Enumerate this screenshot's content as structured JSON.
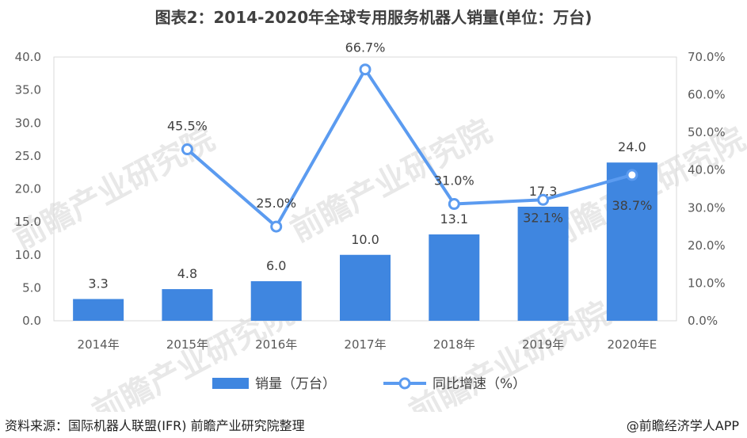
{
  "chart_data": {
    "type": "bar",
    "title": "图表2：2014-2020年全球专用服务机器人销量(单位：万台)",
    "categories": [
      "2014年",
      "2015年",
      "2016年",
      "2017年",
      "2018年",
      "2019年",
      "2020年E"
    ],
    "series": [
      {
        "name": "销量（万台）",
        "type": "bar",
        "axis": "left",
        "color": "#3f86e0",
        "values": [
          3.3,
          4.8,
          6.0,
          10.0,
          13.1,
          17.3,
          24.0
        ],
        "labels": [
          "3.3",
          "4.8",
          "6.0",
          "10.0",
          "13.1",
          "17.3",
          "24.0"
        ]
      },
      {
        "name": "同比增速（%）",
        "type": "line",
        "axis": "right",
        "color": "#5b9bf0",
        "values": [
          null,
          45.5,
          25.0,
          66.7,
          31.0,
          32.1,
          38.7
        ],
        "labels": [
          "",
          "45.5%",
          "25.0%",
          "66.7%",
          "31.0%",
          "32.1%",
          "38.7%"
        ]
      }
    ],
    "y_left": {
      "min": 0,
      "max": 40,
      "step": 5,
      "ticks": [
        "0.0",
        "5.0",
        "10.0",
        "15.0",
        "20.0",
        "25.0",
        "30.0",
        "35.0",
        "40.0"
      ]
    },
    "y_right": {
      "min": 0,
      "max": 70,
      "step": 10,
      "ticks": [
        "0.0%",
        "10.0%",
        "20.0%",
        "30.0%",
        "40.0%",
        "50.0%",
        "60.0%",
        "70.0%"
      ]
    },
    "grid": false,
    "legend": "bottom-center"
  },
  "source": "资料来源：国际机器人联盟(IFR)  前瞻产业研究院整理",
  "credit": "@前瞻经济学人APP",
  "watermark": "前瞻产业研究院"
}
